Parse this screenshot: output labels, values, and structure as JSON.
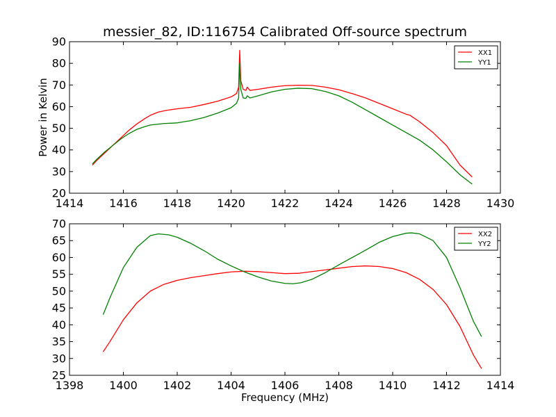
{
  "chart_data": [
    {
      "type": "line",
      "title": "messier_82, ID:116754 Calibrated Off-source spectrum",
      "xlabel": "",
      "ylabel": "Power in Kelvin",
      "xlim": [
        1414,
        1430
      ],
      "ylim": [
        20,
        90
      ],
      "xticks": [
        1414,
        1416,
        1418,
        1420,
        1422,
        1424,
        1426,
        1428,
        1430
      ],
      "yticks": [
        20,
        30,
        40,
        50,
        60,
        70,
        80,
        90
      ],
      "grid": false,
      "legend_position": "top-right",
      "series": [
        {
          "name": "XX1",
          "color": "#ff0000",
          "points": [
            [
              1414.85,
              33.0
            ],
            [
              1415.0,
              35.0
            ],
            [
              1415.3,
              38.5
            ],
            [
              1415.6,
              42.0
            ],
            [
              1415.9,
              45.5
            ],
            [
              1416.2,
              49.0
            ],
            [
              1416.5,
              52.0
            ],
            [
              1416.8,
              54.5
            ],
            [
              1417.0,
              56.0
            ],
            [
              1417.3,
              57.5
            ],
            [
              1417.6,
              58.3
            ],
            [
              1418.0,
              59.0
            ],
            [
              1418.5,
              59.7
            ],
            [
              1419.0,
              61.0
            ],
            [
              1419.5,
              62.5
            ],
            [
              1420.0,
              64.5
            ],
            [
              1420.2,
              66.0
            ],
            [
              1420.28,
              69.0
            ],
            [
              1420.32,
              86.0
            ],
            [
              1420.36,
              72.0
            ],
            [
              1420.45,
              68.0
            ],
            [
              1420.55,
              67.5
            ],
            [
              1420.6,
              69.0
            ],
            [
              1420.7,
              67.5
            ],
            [
              1421.0,
              68.0
            ],
            [
              1421.5,
              69.0
            ],
            [
              1422.0,
              69.7
            ],
            [
              1422.5,
              69.9
            ],
            [
              1423.0,
              69.8
            ],
            [
              1423.5,
              69.0
            ],
            [
              1424.0,
              67.8
            ],
            [
              1424.5,
              66.0
            ],
            [
              1425.0,
              64.0
            ],
            [
              1425.5,
              61.5
            ],
            [
              1426.0,
              59.0
            ],
            [
              1426.5,
              56.5
            ],
            [
              1426.65,
              56.0
            ],
            [
              1426.7,
              55.5
            ],
            [
              1427.0,
              53.0
            ],
            [
              1427.5,
              48.0
            ],
            [
              1428.0,
              42.0
            ],
            [
              1428.5,
              33.0
            ],
            [
              1428.95,
              27.5
            ]
          ]
        },
        {
          "name": "YY1",
          "color": "#008000",
          "points": [
            [
              1414.85,
              33.5
            ],
            [
              1415.0,
              35.5
            ],
            [
              1415.3,
              39.0
            ],
            [
              1415.6,
              42.0
            ],
            [
              1415.9,
              45.0
            ],
            [
              1416.2,
              47.5
            ],
            [
              1416.5,
              49.5
            ],
            [
              1416.8,
              50.8
            ],
            [
              1417.0,
              51.5
            ],
            [
              1417.5,
              52.2
            ],
            [
              1418.0,
              52.5
            ],
            [
              1418.5,
              53.5
            ],
            [
              1419.0,
              55.0
            ],
            [
              1419.5,
              57.0
            ],
            [
              1420.0,
              59.5
            ],
            [
              1420.2,
              61.5
            ],
            [
              1420.28,
              64.0
            ],
            [
              1420.32,
              80.0
            ],
            [
              1420.36,
              68.0
            ],
            [
              1420.45,
              64.0
            ],
            [
              1420.55,
              63.8
            ],
            [
              1420.6,
              65.0
            ],
            [
              1420.7,
              64.0
            ],
            [
              1421.0,
              65.0
            ],
            [
              1421.5,
              66.8
            ],
            [
              1422.0,
              68.0
            ],
            [
              1422.5,
              68.5
            ],
            [
              1423.0,
              68.3
            ],
            [
              1423.5,
              67.0
            ],
            [
              1424.0,
              65.0
            ],
            [
              1424.5,
              62.0
            ],
            [
              1425.0,
              58.5
            ],
            [
              1425.5,
              55.0
            ],
            [
              1426.0,
              51.5
            ],
            [
              1426.5,
              48.0
            ],
            [
              1427.0,
              44.5
            ],
            [
              1427.5,
              40.0
            ],
            [
              1428.0,
              34.5
            ],
            [
              1428.5,
              28.5
            ],
            [
              1428.95,
              24.2
            ]
          ]
        }
      ]
    },
    {
      "type": "line",
      "title": "",
      "xlabel": "Frequency (MHz)",
      "ylabel": "",
      "xlim": [
        1398,
        1414
      ],
      "ylim": [
        25,
        70
      ],
      "xticks": [
        1398,
        1400,
        1402,
        1404,
        1406,
        1408,
        1410,
        1412,
        1414
      ],
      "yticks": [
        25,
        30,
        35,
        40,
        45,
        50,
        55,
        60,
        65,
        70
      ],
      "grid": false,
      "legend_position": "top-right",
      "series": [
        {
          "name": "XX2",
          "color": "#ff0000",
          "points": [
            [
              1399.25,
              32.0
            ],
            [
              1399.5,
              35.0
            ],
            [
              1400.0,
              41.5
            ],
            [
              1400.5,
              46.5
            ],
            [
              1401.0,
              50.0
            ],
            [
              1401.5,
              52.0
            ],
            [
              1402.0,
              53.2
            ],
            [
              1402.5,
              54.0
            ],
            [
              1403.0,
              54.6
            ],
            [
              1403.5,
              55.2
            ],
            [
              1404.0,
              55.7
            ],
            [
              1404.5,
              55.9
            ],
            [
              1405.0,
              55.8
            ],
            [
              1405.5,
              55.5
            ],
            [
              1406.0,
              55.2
            ],
            [
              1406.5,
              55.3
            ],
            [
              1407.0,
              55.8
            ],
            [
              1407.5,
              56.3
            ],
            [
              1408.0,
              56.8
            ],
            [
              1408.5,
              57.3
            ],
            [
              1409.0,
              57.5
            ],
            [
              1409.5,
              57.3
            ],
            [
              1410.0,
              56.7
            ],
            [
              1410.5,
              55.5
            ],
            [
              1411.0,
              53.5
            ],
            [
              1411.5,
              50.5
            ],
            [
              1412.0,
              46.0
            ],
            [
              1412.5,
              39.5
            ],
            [
              1413.0,
              31.0
            ],
            [
              1413.3,
              27.0
            ]
          ]
        },
        {
          "name": "YY2",
          "color": "#008000",
          "points": [
            [
              1399.25,
              43.0
            ],
            [
              1399.5,
              48.0
            ],
            [
              1400.0,
              57.0
            ],
            [
              1400.5,
              63.0
            ],
            [
              1401.0,
              66.5
            ],
            [
              1401.3,
              67.0
            ],
            [
              1401.7,
              66.7
            ],
            [
              1402.0,
              66.0
            ],
            [
              1402.5,
              64.2
            ],
            [
              1403.0,
              62.0
            ],
            [
              1403.5,
              59.5
            ],
            [
              1404.0,
              57.5
            ],
            [
              1404.5,
              55.7
            ],
            [
              1405.0,
              54.2
            ],
            [
              1405.5,
              53.0
            ],
            [
              1406.0,
              52.3
            ],
            [
              1406.3,
              52.2
            ],
            [
              1406.6,
              52.5
            ],
            [
              1407.0,
              53.5
            ],
            [
              1407.5,
              55.5
            ],
            [
              1408.0,
              57.8
            ],
            [
              1408.5,
              60.0
            ],
            [
              1409.0,
              62.2
            ],
            [
              1409.5,
              64.5
            ],
            [
              1410.0,
              66.2
            ],
            [
              1410.5,
              67.2
            ],
            [
              1410.7,
              67.3
            ],
            [
              1411.0,
              67.0
            ],
            [
              1411.5,
              65.0
            ],
            [
              1412.0,
              60.0
            ],
            [
              1412.5,
              51.0
            ],
            [
              1413.0,
              41.0
            ],
            [
              1413.3,
              36.5
            ]
          ]
        }
      ]
    }
  ]
}
